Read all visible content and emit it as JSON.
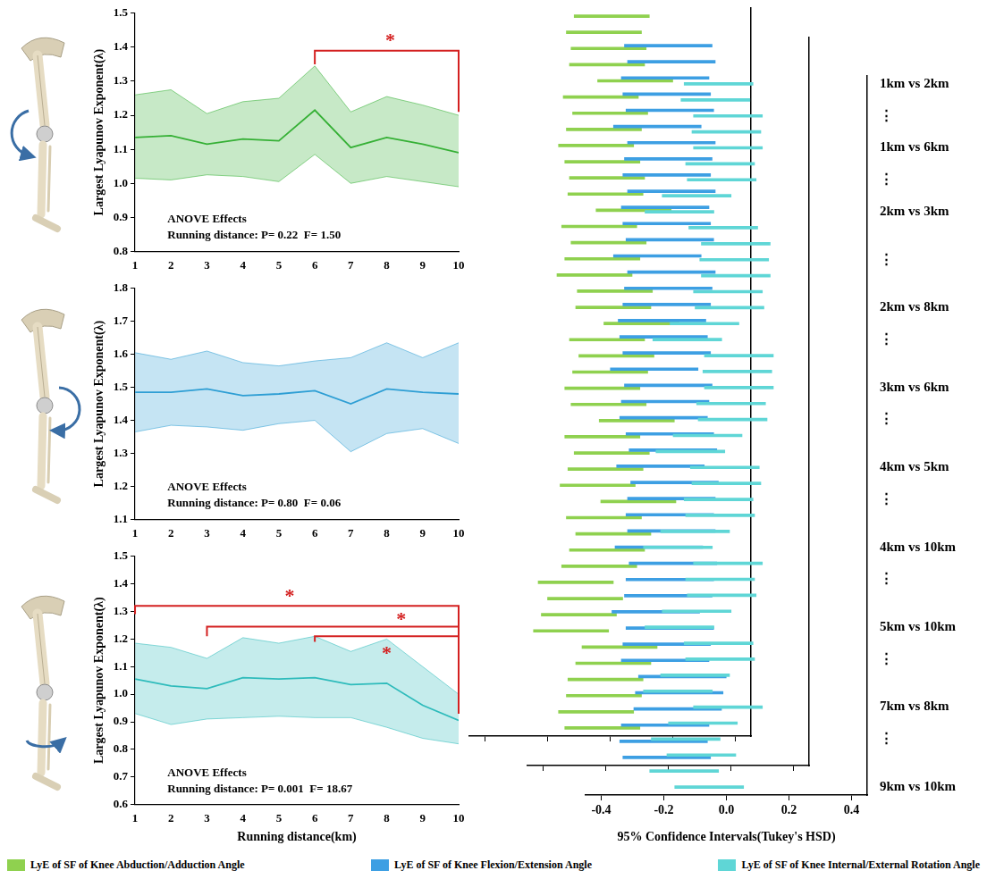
{
  "chart_data": [
    {
      "type": "line",
      "ylabel": "Largest Lyapunov Exponent(λ)",
      "x": [
        1,
        2,
        3,
        4,
        5,
        6,
        7,
        8,
        9,
        10
      ],
      "xlim": [
        1,
        10
      ],
      "xticks": [
        1,
        2,
        3,
        4,
        5,
        6,
        7,
        8,
        9,
        10
      ],
      "ylim": [
        0.8,
        1.5
      ],
      "yticks": [
        0.8,
        0.9,
        {
          "value": 1,
          "label": "1.0"
        },
        1.1,
        1.2,
        1.3,
        1.4,
        1.5
      ],
      "grid": false,
      "annotations": [
        "ANOVE Effects",
        "Running distance: P= 0.22  F= 1.50"
      ],
      "significance": [
        {
          "from": 6,
          "to": 10,
          "y": 1.39,
          "from_y": 1.35,
          "to_y": 1.21,
          "label": "*",
          "label_x": 8.1,
          "label_y": 1.43
        }
      ],
      "series": [
        {
          "color": "#35b035",
          "values": [
            1.135,
            1.14,
            1.115,
            1.13,
            1.125,
            1.215,
            1.105,
            1.135,
            1.115,
            1.09
          ],
          "lower": [
            1.015,
            1.01,
            1.025,
            1.02,
            1.005,
            1.085,
            1.0,
            1.02,
            1.005,
            0.99
          ],
          "upper": [
            1.26,
            1.275,
            1.205,
            1.24,
            1.25,
            1.345,
            1.21,
            1.255,
            1.23,
            1.2
          ]
        }
      ]
    },
    {
      "type": "line",
      "ylabel": "Largest Lyapunov Exponent(λ)",
      "x": [
        1,
        2,
        3,
        4,
        5,
        6,
        7,
        8,
        9,
        10
      ],
      "xlim": [
        1,
        10
      ],
      "xticks": [
        1,
        2,
        3,
        4,
        5,
        6,
        7,
        8,
        9,
        10
      ],
      "ylim": [
        1.1,
        1.8
      ],
      "yticks": [
        1.1,
        1.2,
        1.3,
        1.4,
        1.5,
        1.6,
        1.7,
        1.8
      ],
      "grid": false,
      "annotations": [
        "ANOVE Effects",
        "Running distance: P= 0.80  F= 0.06"
      ],
      "significance": [],
      "series": [
        {
          "color": "#2e9fd4",
          "values": [
            1.485,
            1.485,
            1.495,
            1.475,
            1.48,
            1.49,
            1.45,
            1.495,
            1.485,
            1.48
          ],
          "lower": [
            1.365,
            1.385,
            1.38,
            1.37,
            1.39,
            1.4,
            1.305,
            1.36,
            1.375,
            1.33
          ],
          "upper": [
            1.605,
            1.585,
            1.61,
            1.575,
            1.565,
            1.58,
            1.59,
            1.635,
            1.59,
            1.635
          ]
        }
      ]
    },
    {
      "type": "line",
      "xlabel": "Running distance(km)",
      "ylabel": "Largest Lyapunov Exponent(λ)",
      "x": [
        1,
        2,
        3,
        4,
        5,
        6,
        7,
        8,
        9,
        10
      ],
      "xlim": [
        1,
        10
      ],
      "xticks": [
        1,
        2,
        3,
        4,
        5,
        6,
        7,
        8,
        9,
        10
      ],
      "ylim": [
        0.6,
        1.5
      ],
      "yticks": [
        0.6,
        0.7,
        0.8,
        0.9,
        {
          "value": 1,
          "label": "1.0"
        },
        1.1,
        1.2,
        1.3,
        1.4,
        1.5
      ],
      "grid": false,
      "annotations": [
        "ANOVE Effects",
        "Running distance: P= 0.001  F= 18.67"
      ],
      "significance": [
        {
          "from": 1,
          "to": 10,
          "y": 1.32,
          "from_y": 1.29,
          "to_y": 0.93,
          "label": "*",
          "label_x": 5.3,
          "label_y": 1.37
        },
        {
          "from": 3,
          "to": 10,
          "y": 1.245,
          "from_y": 1.21,
          "to_y": 0.93,
          "label": "*",
          "label_x": 8.4,
          "label_y": 1.285
        },
        {
          "from": 6,
          "to": 10,
          "y": 1.21,
          "from_y": 1.19,
          "to_y": 0.93,
          "label": "*",
          "label_x": 8.0,
          "label_y": 1.16
        }
      ],
      "series": [
        {
          "color": "#2fbcbc",
          "values": [
            1.055,
            1.03,
            1.02,
            1.06,
            1.055,
            1.06,
            1.035,
            1.04,
            0.96,
            0.905
          ],
          "lower": [
            0.93,
            0.89,
            0.91,
            0.915,
            0.92,
            0.915,
            0.915,
            0.88,
            0.84,
            0.82
          ],
          "upper": [
            1.185,
            1.17,
            1.13,
            1.205,
            1.185,
            1.21,
            1.155,
            1.2,
            1.1,
            1.0
          ]
        }
      ]
    },
    {
      "type": "bar",
      "orientation": "horizontal",
      "xlabel": "95% Confidence Intervals(Tukey's HSD)",
      "xlim": [
        -0.45,
        0.45
      ],
      "xticks": [
        -0.4,
        -0.2,
        {
          "value": 0,
          "label": "0.0"
        },
        0.2,
        0.4
      ],
      "grid": false,
      "legend": "bottom",
      "categories": [
        "1km vs 2km",
        null,
        "⋮",
        null,
        "1km vs 6km",
        null,
        "⋮",
        null,
        "2km vs 3km",
        null,
        null,
        "⋮",
        null,
        null,
        "2km vs 8km",
        null,
        "⋮",
        null,
        null,
        "3km vs 6km",
        null,
        "⋮",
        null,
        null,
        "4km vs 5km",
        null,
        "⋮",
        null,
        null,
        "4km vs 10km",
        null,
        "⋮",
        null,
        null,
        "5km vs 10km",
        null,
        "⋮",
        null,
        null,
        "7km vs 8km",
        null,
        "⋮",
        null,
        null,
        "9km vs 10km"
      ],
      "series": [
        {
          "name": "LyE of SF of Knee Abduction/Adduction Angle",
          "color": "#8fd14f",
          "error": 0.12,
          "values": [
            0.005,
            -0.02,
            -0.005,
            -0.01,
            0.08,
            -0.03,
            0,
            -0.02,
            -0.045,
            -0.025,
            -0.01,
            -0.015,
            0.075,
            -0.035,
            -0.005,
            -0.025,
            -0.05,
            0.015,
            0.01,
            0.1,
            -0.01,
            0.02,
            0,
            -0.025,
            -0.005,
            0.085,
            -0.025,
            0.005,
            -0.015,
            -0.04,
            0.09,
            -0.02,
            0.01,
            -0.01,
            -0.035,
            -0.11,
            -0.08,
            -0.1,
            -0.125,
            0.03,
            0.01,
            -0.015,
            -0.02,
            -0.045,
            -0.025
          ]
        },
        {
          "name": "LyE of SF of Knee Flexion/Extension Angle",
          "color": "#3d9fe3",
          "error": 0.14,
          "values": [
            0,
            0.01,
            -0.01,
            -0.005,
            0.005,
            -0.035,
            0.01,
            0,
            -0.005,
            0.01,
            -0.01,
            -0.005,
            0.005,
            -0.035,
            0.01,
            0,
            -0.005,
            -0.02,
            -0.015,
            -0.005,
            -0.045,
            0,
            -0.01,
            -0.015,
            0.005,
            0.015,
            -0.025,
            0.02,
            0.01,
            0.005,
            0.01,
            -0.03,
            0.015,
            0.005,
            0,
            -0.04,
            0.005,
            -0.005,
            -0.01,
            0.045,
            0.035,
            0.03,
            -0.01,
            -0.015,
            -0.005
          ]
        },
        {
          "name": "LyE of SF of Knee Internal/External Rotation Angle",
          "color": "#5fd6d6",
          "error": 0.11,
          "values": [
            -0.025,
            -0.035,
            0.005,
            0,
            0.005,
            -0.02,
            -0.015,
            -0.095,
            -0.15,
            -0.01,
            0.03,
            0.025,
            0.03,
            0.005,
            0.01,
            -0.07,
            -0.125,
            0.04,
            0.035,
            0.04,
            0.015,
            0.02,
            -0.06,
            -0.115,
            -0.005,
            0,
            -0.025,
            -0.02,
            -0.1,
            -0.155,
            0.005,
            -0.02,
            -0.015,
            -0.095,
            -0.15,
            -0.025,
            -0.02,
            -0.1,
            -0.155,
            0.005,
            -0.075,
            -0.13,
            -0.08,
            -0.135,
            -0.055
          ]
        }
      ]
    }
  ]
}
